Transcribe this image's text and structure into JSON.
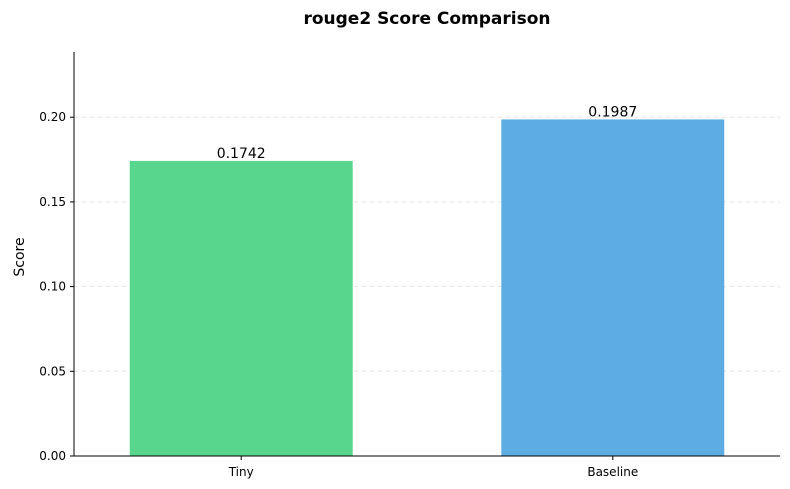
{
  "chart_data": {
    "type": "bar",
    "title": "rouge2 Score Comparison",
    "xlabel": "",
    "ylabel": "Score",
    "categories": [
      "Tiny",
      "Baseline"
    ],
    "values": [
      0.1742,
      0.1987
    ],
    "value_labels": [
      "0.1742",
      "0.1987"
    ],
    "bar_colors": [
      "#58d68d",
      "#5dade2"
    ],
    "ylim": [
      0,
      0.2385
    ],
    "yticks": [
      0.0,
      0.05,
      0.1,
      0.15,
      0.2
    ],
    "ytick_labels": [
      "0.00",
      "0.05",
      "0.10",
      "0.15",
      "0.20"
    ],
    "grid": "y-dashed",
    "legend": "none"
  }
}
